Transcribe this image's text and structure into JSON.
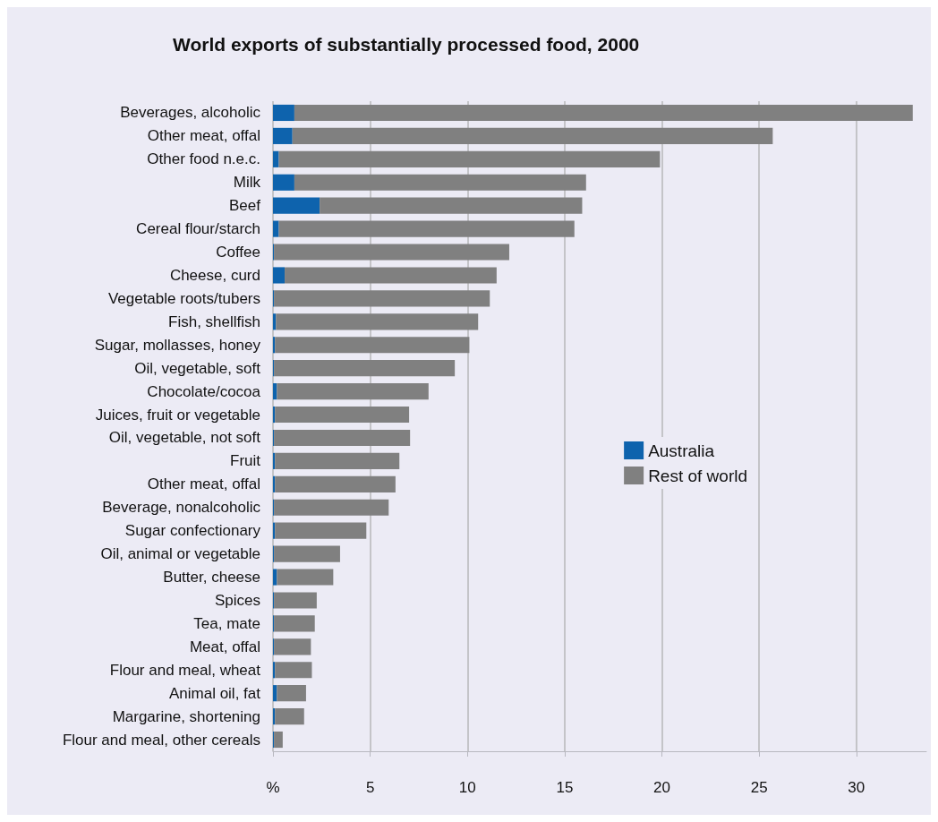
{
  "chart_data": {
    "type": "bar",
    "orientation": "horizontal",
    "stacked": true,
    "title": "World exports of substantially processed food, 2000",
    "categories": [
      "Beverages, alcoholic",
      "Other meat, offal",
      "Other food n.e.c.",
      "Milk",
      "Beef",
      "Cereal flour/starch",
      "Coffee",
      "Cheese, curd",
      "Vegetable roots/tubers",
      "Fish, shellfish",
      "Sugar, mollasses, honey",
      "Oil, vegetable, soft",
      "Chocolate/cocoa",
      "Juices, fruit or vegetable",
      "Oil, vegetable, not soft",
      "Fruit",
      "Other meat, offal",
      "Beverage, nonalcoholic",
      "Sugar confectionary",
      "Oil, animal or vegetable",
      "Butter, cheese",
      "Spices",
      "Tea, mate",
      "Meat, offal",
      "Flour and meal, wheat",
      "Animal oil, fat",
      "Margarine, shortening",
      "Flour and meal, other cereals"
    ],
    "series": [
      {
        "name": "Australia",
        "color": "#0e63ad",
        "values": [
          1.1,
          1.0,
          0.3,
          1.1,
          2.4,
          0.3,
          0.05,
          0.6,
          0.05,
          0.15,
          0.1,
          0.05,
          0.2,
          0.1,
          0.05,
          0.1,
          0.1,
          0.05,
          0.1,
          0.05,
          0.2,
          0.05,
          0.05,
          0.05,
          0.1,
          0.2,
          0.1,
          0.05
        ]
      },
      {
        "name": "Rest of world",
        "color": "#808080",
        "values": [
          31.8,
          24.7,
          19.6,
          15.0,
          13.5,
          15.2,
          12.1,
          10.9,
          11.1,
          10.4,
          10.0,
          9.3,
          7.8,
          6.9,
          7.0,
          6.4,
          6.2,
          5.9,
          4.7,
          3.4,
          2.9,
          2.2,
          2.1,
          1.9,
          1.9,
          1.5,
          1.5,
          0.45
        ]
      }
    ],
    "xlim": [
      0,
      33.6
    ],
    "xticks": [
      {
        "value": 0,
        "label": "%"
      },
      5,
      10,
      15,
      20,
      25,
      30
    ],
    "grid": "x",
    "legend": "right"
  }
}
